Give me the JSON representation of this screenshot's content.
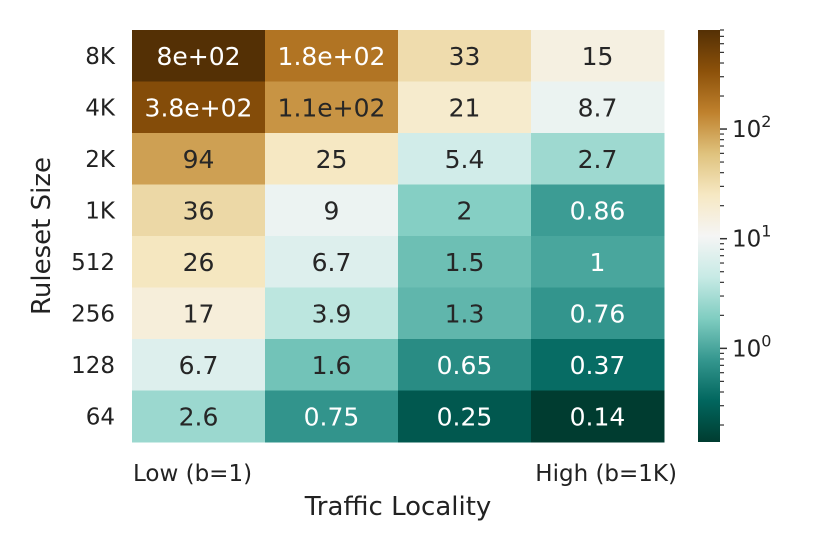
{
  "chart_data": {
    "type": "heatmap",
    "xlabel": "Traffic Locality",
    "ylabel": "Ruleset Size",
    "x_tick_labels": [
      "Low (b=1)",
      "High (b=1K)"
    ],
    "rows": [
      "8K",
      "4K",
      "2K",
      "1K",
      "512",
      "256",
      "128",
      "64"
    ],
    "columns": 4,
    "values": [
      [
        800,
        180,
        33,
        15
      ],
      [
        380,
        110,
        21,
        8.7
      ],
      [
        94,
        25,
        5.4,
        2.7
      ],
      [
        36,
        9,
        2,
        0.86
      ],
      [
        26,
        6.7,
        1.5,
        1
      ],
      [
        17,
        3.9,
        1.3,
        0.76
      ],
      [
        6.7,
        1.6,
        0.65,
        0.37
      ],
      [
        2.6,
        0.75,
        0.25,
        0.14
      ]
    ],
    "labels": [
      [
        "8e+02",
        "1.8e+02",
        "33",
        "15"
      ],
      [
        "3.8e+02",
        "1.1e+02",
        "21",
        "8.7"
      ],
      [
        "94",
        "25",
        "5.4",
        "2.7"
      ],
      [
        "36",
        "9",
        "2",
        "0.86"
      ],
      [
        "26",
        "6.7",
        "1.5",
        "1"
      ],
      [
        "17",
        "3.9",
        "1.3",
        "0.76"
      ],
      [
        "6.7",
        "1.6",
        "0.65",
        "0.37"
      ],
      [
        "2.6",
        "0.75",
        "0.25",
        "0.14"
      ]
    ],
    "colormap": "BrBG_r",
    "color_scale": "log",
    "vmin": 0.14,
    "vmax": 800,
    "colorbar": {
      "tick_values": [
        100,
        10,
        1
      ],
      "tick_labels": [
        {
          "base": "10",
          "exp": "2"
        },
        {
          "base": "10",
          "exp": "1"
        },
        {
          "base": "10",
          "exp": "0"
        }
      ]
    },
    "colors": {
      "high": "#543005",
      "mid": "#f5f5f5",
      "low": "#003c30",
      "dark_text": "#262626",
      "light_text": "#ffffff"
    }
  }
}
